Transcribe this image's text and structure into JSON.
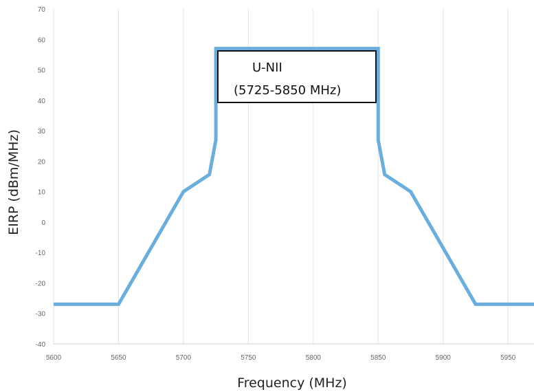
{
  "chart_data": {
    "type": "line",
    "title": "",
    "xlabel": "Frequency (MHz)",
    "ylabel": "EIRP (dBm/MHz)",
    "xlim": [
      5600,
      5970
    ],
    "ylim": [
      -40,
      70
    ],
    "x_ticks": [
      5600,
      5650,
      5700,
      5750,
      5800,
      5850,
      5900,
      5950
    ],
    "y_ticks": [
      -40,
      -30,
      -20,
      -10,
      0,
      10,
      20,
      30,
      40,
      50,
      60,
      70
    ],
    "grid": "vertical",
    "line_color": "#6aaede",
    "series": [
      {
        "x": [
          5600,
          5650,
          5700,
          5720,
          5725,
          5725,
          5850,
          5850,
          5855,
          5875,
          5925,
          5970
        ],
        "y": [
          -27,
          -27,
          10,
          15.6,
          27,
          57,
          57,
          27,
          15.6,
          10,
          -27,
          -27
        ]
      }
    ],
    "annotation": {
      "line1": "U-NII",
      "line2": "(5725-5850 MHz)"
    }
  }
}
